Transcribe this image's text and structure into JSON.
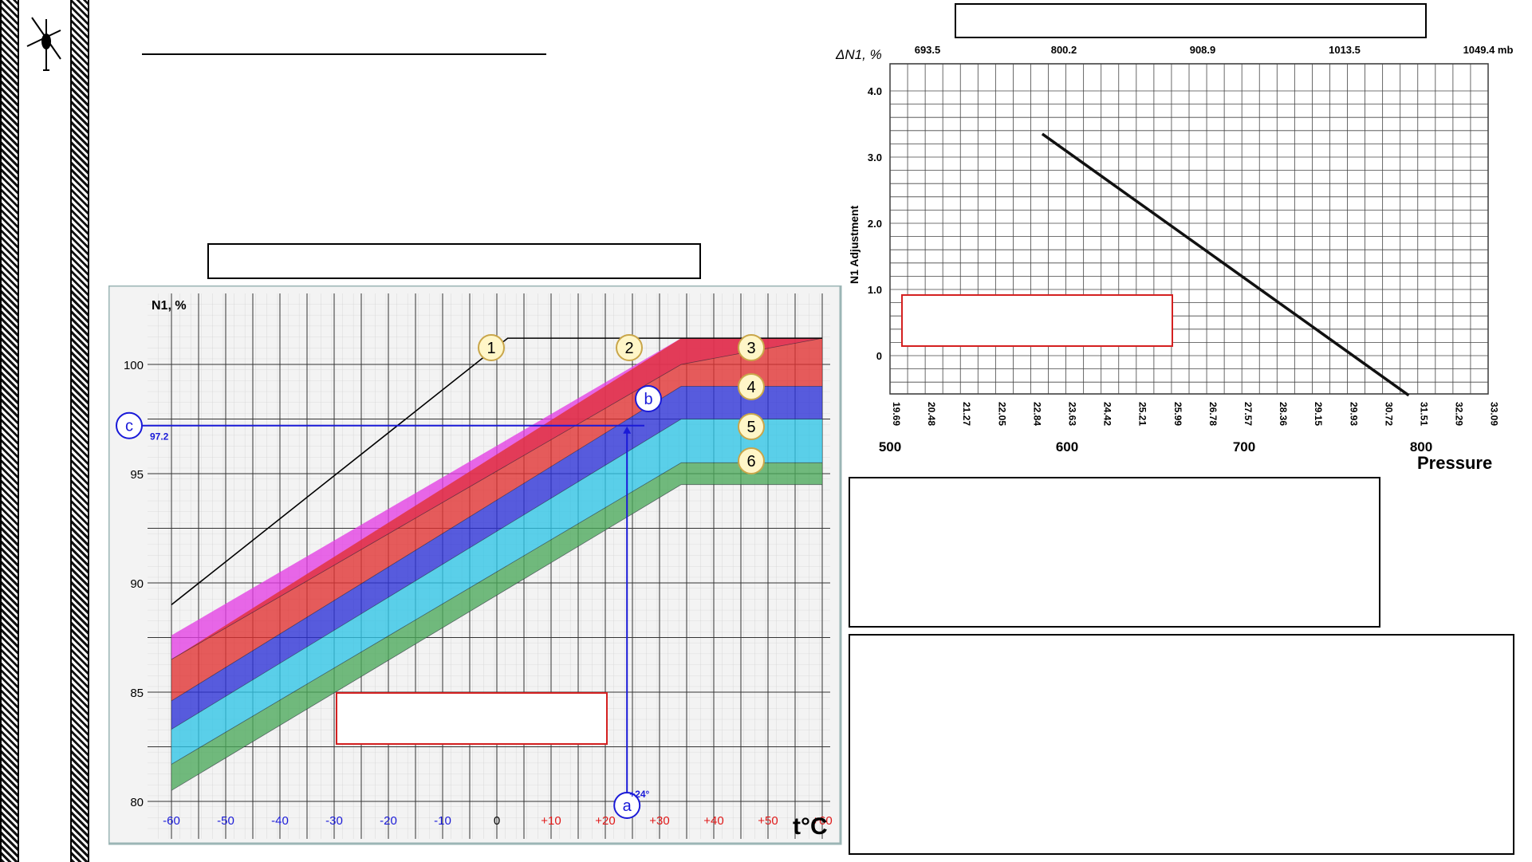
{
  "left_chart": {
    "ylabel": "N1, %",
    "xlabel": "t°C",
    "x_ticks": [
      "-60",
      "-50",
      "-40",
      "-30",
      "-20",
      "-10",
      "0",
      "+10",
      "+20",
      "+30",
      "+40",
      "+50",
      "+60"
    ],
    "y_ticks": [
      "80",
      "85",
      "90",
      "95",
      "100"
    ],
    "markers": {
      "one": "1",
      "two": "2",
      "three": "3",
      "four": "4",
      "five": "5",
      "six": "6",
      "a": "a",
      "b": "b",
      "c": "c"
    },
    "readout_temp": "+24°",
    "readout_n1": "97.2"
  },
  "right_chart": {
    "ylabel": "ΔN1, %",
    "ylabel_side": "N1 Adjustment",
    "xlabel": "Pressure",
    "top_labels": [
      "693.5",
      "800.2",
      "908.9",
      "1013.5",
      "1049.4 mb"
    ],
    "inhg_labels": [
      "19.69",
      "20.48",
      "21.27",
      "22.05",
      "22.84",
      "23.63",
      "24.42",
      "25.21",
      "25.99",
      "26.78",
      "27.57",
      "28.36",
      "29.15",
      "29.93",
      "30.72",
      "31.51",
      "32.29",
      "33.09"
    ],
    "x_major": [
      "500",
      "600",
      "700",
      "800"
    ],
    "y_ticks": [
      "0",
      "1.0",
      "2.0",
      "3.0",
      "4.0"
    ]
  },
  "colors": {
    "magenta": "#e33de3",
    "red": "#e03030",
    "blue": "#2a2fd6",
    "cyan": "#2ec4e6",
    "green": "#4aa85a",
    "readout": "#1a1ad8",
    "tick_negative": "#1a1ad8",
    "tick_positive": "#e01818",
    "alert_box": "#d42020"
  },
  "icons": [
    "helicopter-logo-icon"
  ],
  "chart_data": [
    {
      "type": "area",
      "title": "",
      "xlabel": "t°C",
      "ylabel": "N1, %",
      "xlim": [
        -60,
        60
      ],
      "ylim": [
        80,
        101.5
      ],
      "x": [
        -60,
        34,
        60
      ],
      "series": [
        {
          "name": "1",
          "kind": "line",
          "points": [
            [
              -60,
              89.0
            ],
            [
              2,
              101.2
            ],
            [
              60,
              101.2
            ]
          ]
        },
        {
          "name": "2",
          "upper": [
            87.6,
            101.2,
            101.2
          ],
          "lower": [
            86.5,
            100.0,
            101.2
          ]
        },
        {
          "name": "3",
          "upper": [
            86.5,
            101.2,
            101.2
          ],
          "lower": [
            84.6,
            99.0,
            99.0
          ]
        },
        {
          "name": "4",
          "upper": [
            84.6,
            99.0,
            99.0
          ],
          "lower": [
            83.3,
            97.5,
            97.5
          ]
        },
        {
          "name": "5",
          "upper": [
            83.3,
            97.5,
            97.5
          ],
          "lower": [
            81.7,
            95.5,
            95.5
          ]
        },
        {
          "name": "6",
          "upper": [
            81.7,
            95.5,
            95.5
          ],
          "lower": [
            80.5,
            94.5,
            94.5
          ]
        }
      ],
      "annotations": {
        "a_temp": 24,
        "b_n1": 97.2,
        "c_n1": 97.2
      }
    },
    {
      "type": "line",
      "title": "",
      "xlabel": "Pressure",
      "ylabel": "ΔN1, %",
      "xlim": [
        500,
        838
      ],
      "ylim": [
        -0.6,
        4.2
      ],
      "series": [
        {
          "name": "",
          "x": [
            586,
            793
          ],
          "y": [
            3.35,
            -0.6
          ]
        }
      ]
    }
  ]
}
